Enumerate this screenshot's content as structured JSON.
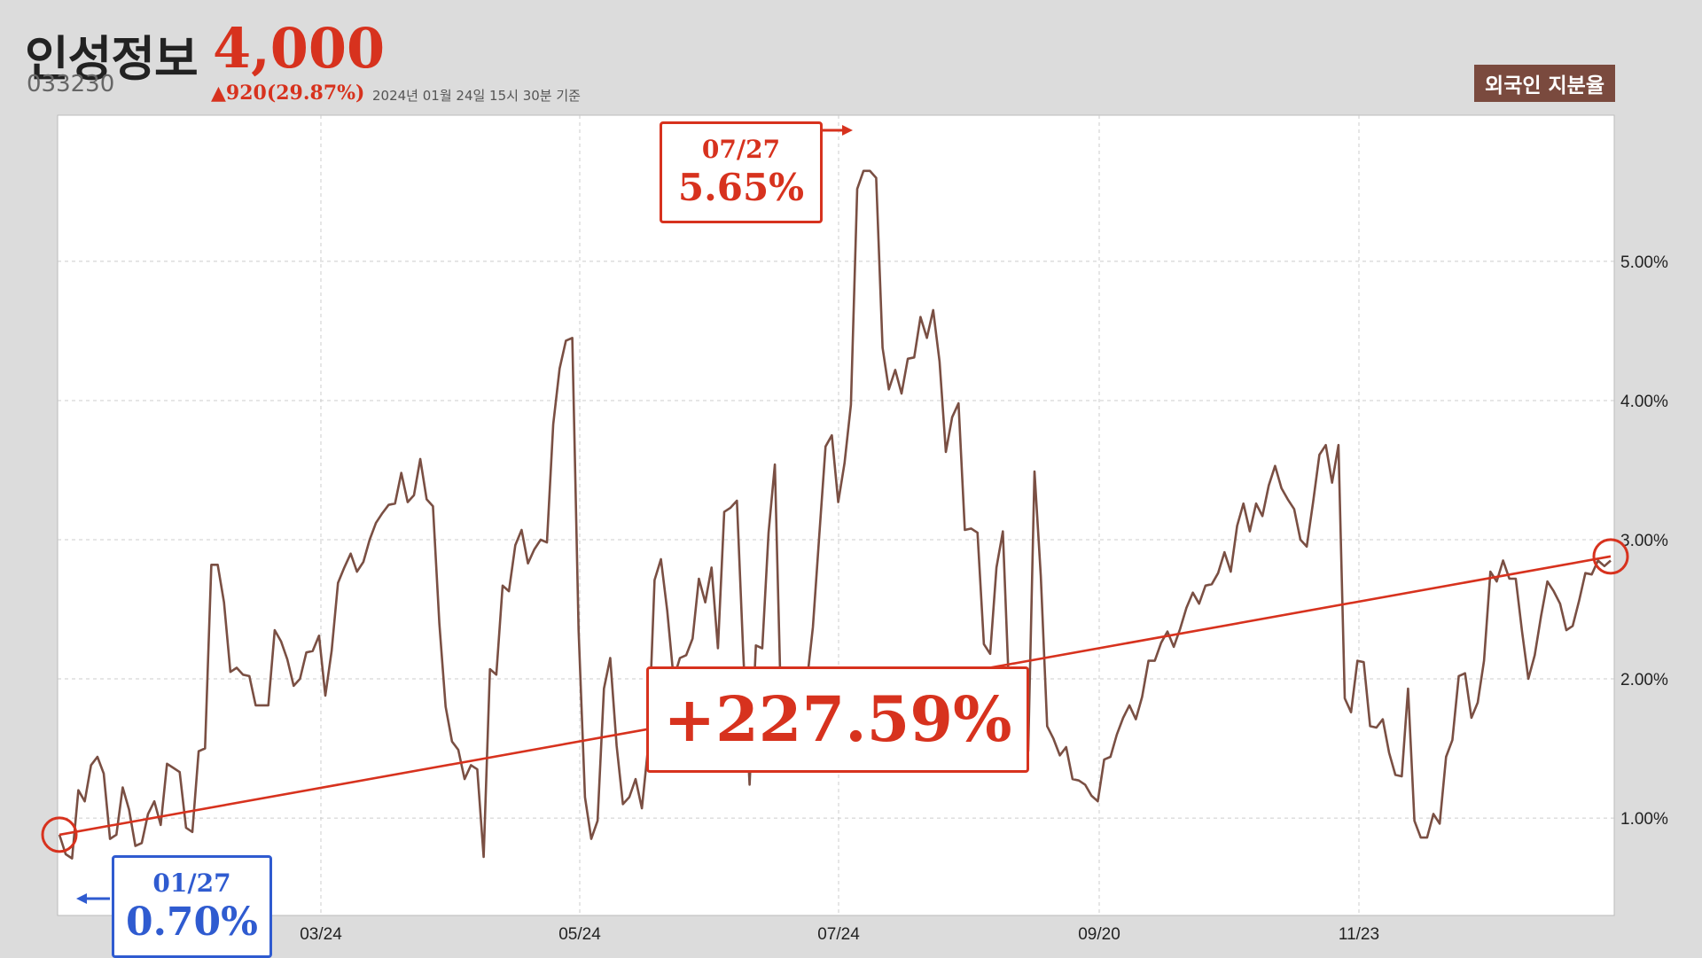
{
  "header": {
    "name": "인성정보",
    "price": "4,000",
    "code": "033230",
    "change": "▲920(29.87%)",
    "timestamp": "2024년 01월 24일 15시 30분 기준",
    "badge": "외국인 지분율"
  },
  "colors": {
    "line": "#7a4f43",
    "accent_red": "#d7321e",
    "accent_blue": "#2f5bd0",
    "badge": "#7a4a3e"
  },
  "callouts": {
    "max": {
      "date": "07/27",
      "value": "5.65%"
    },
    "min": {
      "date": "01/27",
      "value": "0.70%"
    },
    "change": "+227.59%"
  },
  "chart_data": {
    "type": "line",
    "series": [
      {
        "values": [
          0.88,
          0.74,
          0.71,
          1.2,
          1.12,
          1.38,
          1.44,
          1.32,
          0.85,
          0.88,
          1.22,
          1.06,
          0.8,
          0.82,
          1.03,
          1.12,
          0.95,
          1.39,
          1.36,
          1.33,
          0.93,
          0.9,
          1.48,
          1.5,
          2.82,
          2.82,
          2.55,
          2.05,
          2.08,
          2.03,
          2.02,
          1.81,
          1.81,
          1.81,
          2.35,
          2.27,
          2.14,
          1.95,
          2.0,
          2.19,
          2.2,
          2.31,
          1.88,
          2.2,
          2.69,
          2.8,
          2.9,
          2.77,
          2.84,
          3.0,
          3.12,
          3.19,
          3.25,
          3.26,
          3.48,
          3.27,
          3.32,
          3.58,
          3.29,
          3.24,
          2.4,
          1.8,
          1.55,
          1.49,
          1.28,
          1.38,
          1.35,
          0.72,
          2.07,
          2.03,
          2.67,
          2.63,
          2.96,
          3.07,
          2.83,
          2.93,
          3.0,
          2.98,
          3.83,
          4.23,
          4.43,
          4.45,
          2.35,
          1.15,
          0.85,
          0.98,
          1.93,
          2.15,
          1.52,
          1.1,
          1.15,
          1.28,
          1.07,
          1.52,
          2.71,
          2.86,
          2.49,
          2.0,
          2.15,
          2.17,
          2.29,
          2.72,
          2.55,
          2.8,
          2.22,
          3.2,
          3.23,
          3.28,
          2.19,
          1.24,
          2.24,
          2.22,
          3.05,
          3.54,
          1.73,
          1.73,
          1.65,
          1.66,
          1.96,
          2.37,
          3.02,
          3.67,
          3.75,
          3.27,
          3.55,
          3.97,
          5.52,
          5.65,
          5.65,
          5.6,
          4.38,
          4.08,
          4.22,
          4.05,
          4.3,
          4.31,
          4.6,
          4.45,
          4.65,
          4.28,
          3.63,
          3.88,
          3.98,
          3.07,
          3.08,
          3.05,
          2.25,
          2.18,
          2.8,
          3.06,
          1.9,
          1.8,
          1.66,
          1.48,
          3.49,
          2.74,
          1.66,
          1.57,
          1.45,
          1.51,
          1.28,
          1.27,
          1.24,
          1.16,
          1.12,
          1.42,
          1.44,
          1.6,
          1.72,
          1.81,
          1.71,
          1.87,
          2.13,
          2.13,
          2.26,
          2.34,
          2.23,
          2.36,
          2.51,
          2.62,
          2.54,
          2.67,
          2.68,
          2.76,
          2.91,
          2.77,
          3.1,
          3.26,
          3.06,
          3.26,
          3.17,
          3.39,
          3.53,
          3.37,
          3.29,
          3.22,
          3.0,
          2.95,
          3.27,
          3.61,
          3.68,
          3.41,
          3.68,
          1.86,
          1.76,
          2.13,
          2.12,
          1.66,
          1.65,
          1.71,
          1.47,
          1.31,
          1.3,
          1.93,
          0.98,
          0.86,
          0.86,
          1.03,
          0.96,
          1.44,
          1.56,
          2.02,
          2.04,
          1.72,
          1.83,
          2.13,
          2.77,
          2.7,
          2.85,
          2.72,
          2.72,
          2.34,
          2.0,
          2.17,
          2.45,
          2.7,
          2.63,
          2.54,
          2.35,
          2.38,
          2.56,
          2.76,
          2.75,
          2.85,
          2.81,
          2.85
        ]
      }
    ],
    "trend": {
      "from": 0.88,
      "to": 2.88
    },
    "x_ticks": [
      "03/24",
      "05/24",
      "07/24",
      "09/20",
      "11/23"
    ],
    "y_ticks": [
      "1.00%",
      "2.00%",
      "3.00%",
      "4.00%",
      "5.00%"
    ],
    "ylim": [
      0.3,
      6.05
    ],
    "grid": true,
    "y_axis_side": "right"
  }
}
